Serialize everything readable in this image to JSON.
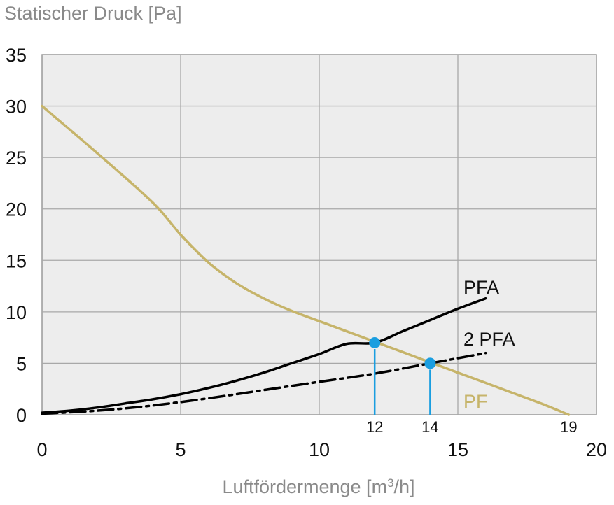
{
  "chart_data": {
    "type": "line",
    "ylabel": "Statischer Druck [Pa]",
    "xlabel_prefix": "Luftfördermenge [m",
    "xlabel_sup": "3",
    "xlabel_suffix": "/h]",
    "xlim": [
      0,
      20
    ],
    "ylim": [
      0,
      35
    ],
    "x_ticks": [
      "0",
      "5",
      "10",
      "15",
      "20"
    ],
    "y_ticks": [
      "0",
      "5",
      "10",
      "15",
      "20",
      "25",
      "30",
      "35"
    ],
    "grid": true,
    "series": [
      {
        "name": "PF",
        "color": "#c6b46a",
        "style": "solid",
        "x": [
          0,
          2,
          4,
          5,
          6,
          7,
          8,
          9,
          10,
          11,
          12,
          13,
          14,
          15,
          16,
          17,
          18,
          19
        ],
        "y": [
          30,
          25.4,
          20.6,
          17.5,
          14.8,
          12.8,
          11.3,
          10.1,
          9.1,
          8.1,
          7.1,
          6.1,
          5.1,
          4.1,
          3.1,
          2.1,
          1.1,
          0
        ]
      },
      {
        "name": "PFA",
        "color": "#000000",
        "style": "solid",
        "x": [
          0,
          1,
          2,
          3,
          4,
          5,
          6,
          7,
          8,
          9,
          10,
          11,
          12,
          13,
          14,
          15,
          16
        ],
        "y": [
          0.2,
          0.4,
          0.7,
          1.1,
          1.5,
          2.0,
          2.6,
          3.3,
          4.1,
          5.0,
          5.9,
          6.9,
          7.0,
          8.1,
          9.2,
          10.3,
          11.3
        ]
      },
      {
        "name": "2 PFA",
        "color": "#000000",
        "style": "dashdot",
        "x": [
          0,
          2,
          4,
          6,
          8,
          10,
          12,
          14,
          16
        ],
        "y": [
          0.1,
          0.4,
          0.9,
          1.6,
          2.4,
          3.2,
          4.0,
          5.0,
          6.0
        ]
      }
    ],
    "operating_points": [
      {
        "label": "12",
        "x": 12,
        "y": 7.0,
        "color": "#1a9ee0"
      },
      {
        "label": "14",
        "x": 14,
        "y": 5.0,
        "color": "#1a9ee0"
      }
    ],
    "marked_x": [
      {
        "label": "19",
        "x": 19
      }
    ]
  }
}
